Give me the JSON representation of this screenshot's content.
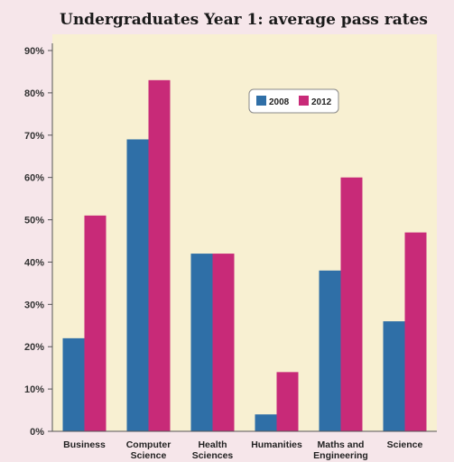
{
  "chart_data": {
    "type": "bar",
    "title": "Undergraduates Year 1: average pass rates",
    "xlabel": "",
    "ylabel": "",
    "categories": [
      [
        "Business"
      ],
      [
        "Computer",
        "Science"
      ],
      [
        "Health",
        "Sciences"
      ],
      [
        "Humanities"
      ],
      [
        "Maths and",
        "Engineering"
      ],
      [
        "Science"
      ]
    ],
    "series": [
      {
        "name": "2008",
        "values": [
          22,
          69,
          42,
          4,
          38,
          26
        ],
        "color": "#2f6fa7"
      },
      {
        "name": "2012",
        "values": [
          51,
          83,
          42,
          14,
          60,
          47
        ],
        "color": "#c82a78"
      }
    ],
    "ylim": [
      0,
      90
    ],
    "yticks": [
      "0%",
      "10%",
      "20%",
      "30%",
      "40%",
      "50%",
      "60%",
      "70%",
      "80%",
      "90%"
    ],
    "grid": false,
    "legend_position": "top-right",
    "colors": {
      "page_background": "#f6e6ea",
      "plot_background": "#f8f0d2",
      "axis": "#555555"
    }
  }
}
